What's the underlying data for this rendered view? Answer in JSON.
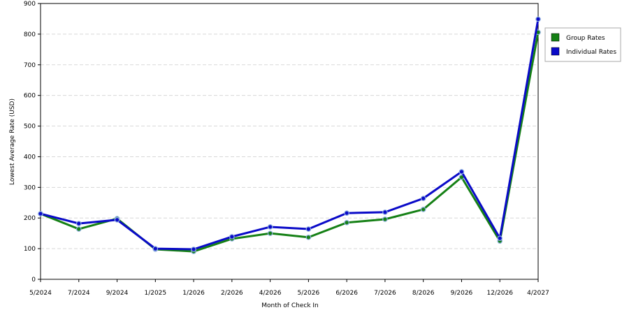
{
  "chart_data": {
    "type": "line",
    "x_label": "Month of Check In",
    "y_label": "Lowest Average Rate (USD)",
    "categories": [
      "5/2024",
      "7/2024",
      "9/2024",
      "1/2025",
      "1/2026",
      "2/2026",
      "4/2026",
      "5/2026",
      "6/2026",
      "7/2026",
      "8/2026",
      "9/2026",
      "12/2026",
      "4/2027"
    ],
    "series": [
      {
        "name": "Group Rates",
        "color": "#158015",
        "values": [
          214,
          164,
          198,
          98,
          91,
          132,
          150,
          137,
          185,
          196,
          228,
          333,
          125,
          806
        ]
      },
      {
        "name": "Individual Rates",
        "color": "#0a0ac8",
        "values": [
          214,
          182,
          194,
          100,
          98,
          139,
          171,
          164,
          216,
          219,
          264,
          351,
          134,
          849
        ]
      }
    ],
    "ylim": [
      0,
      900
    ],
    "yticks": [
      0,
      100,
      200,
      300,
      400,
      500,
      600,
      700,
      800,
      900
    ],
    "grid": true,
    "legend": "right"
  }
}
